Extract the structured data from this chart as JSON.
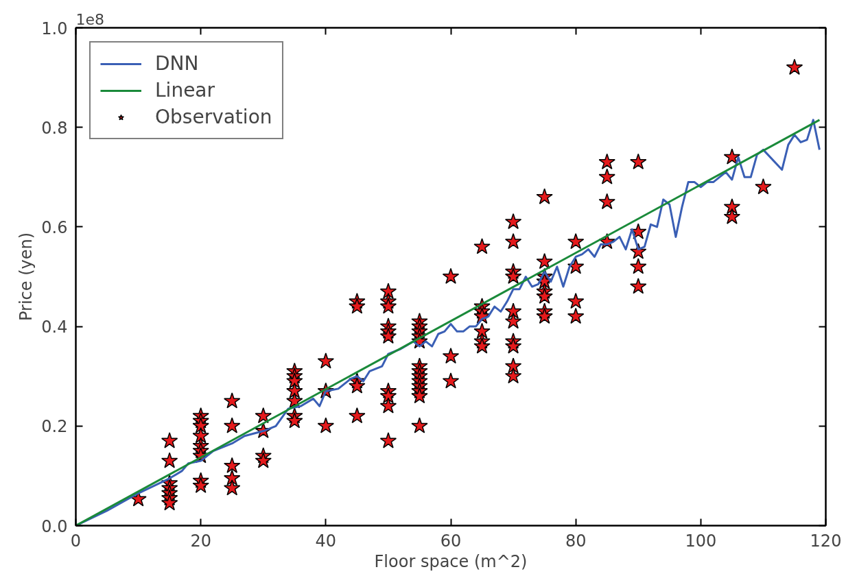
{
  "chart_data": {
    "type": "scatter",
    "xlabel": "Floor space (m^2)",
    "ylabel": "Price (yen)",
    "annotations": [
      "1e8"
    ],
    "xlim": [
      0,
      120
    ],
    "ylim": [
      0,
      1.0
    ],
    "xticks": [
      0,
      20,
      40,
      60,
      80,
      100,
      120
    ],
    "yticks": [
      {
        "value": 0,
        "label": "0.0"
      },
      {
        "value": 0.2,
        "label": "0.2"
      },
      {
        "value": 0.4,
        "label": "0.4"
      },
      {
        "value": 0.6,
        "label": "0.6"
      },
      {
        "value": 0.8,
        "label": "0.8"
      },
      {
        "value": 1.0,
        "label": "1.0"
      }
    ],
    "grid": false,
    "legend": "top left",
    "series": [
      {
        "name": "DNN",
        "type": "line",
        "color": "#3a5fb5",
        "line_style": "solid",
        "marker": "none",
        "x": [
          0,
          5,
          10,
          15,
          17,
          18,
          20,
          22,
          25,
          27,
          30,
          32,
          34,
          36,
          38,
          39,
          40,
          42,
          44,
          45,
          46,
          47,
          49,
          50,
          52,
          54,
          55,
          56,
          57,
          58,
          59,
          60,
          61,
          62,
          63,
          64,
          65,
          66,
          67,
          68,
          69,
          70,
          71,
          72,
          73,
          74,
          75,
          76,
          77,
          78,
          79,
          80,
          81,
          82,
          83,
          84,
          85,
          86,
          87,
          88,
          89,
          90,
          91,
          92,
          93,
          94,
          95,
          96,
          97,
          98,
          99,
          100,
          101,
          102,
          103,
          104,
          105,
          106,
          107,
          108,
          109,
          110,
          113,
          114,
          115,
          116,
          117,
          118,
          119
        ],
        "values": [
          0,
          0.03,
          0.065,
          0.095,
          0.11,
          0.125,
          0.13,
          0.15,
          0.165,
          0.18,
          0.19,
          0.2,
          0.235,
          0.24,
          0.255,
          0.24,
          0.27,
          0.275,
          0.295,
          0.3,
          0.29,
          0.31,
          0.32,
          0.345,
          0.355,
          0.37,
          0.36,
          0.37,
          0.36,
          0.385,
          0.39,
          0.405,
          0.39,
          0.39,
          0.4,
          0.4,
          0.415,
          0.42,
          0.44,
          0.43,
          0.45,
          0.475,
          0.475,
          0.5,
          0.48,
          0.485,
          0.51,
          0.49,
          0.52,
          0.48,
          0.52,
          0.54,
          0.545,
          0.555,
          0.54,
          0.565,
          0.565,
          0.57,
          0.58,
          0.555,
          0.595,
          0.555,
          0.56,
          0.605,
          0.6,
          0.655,
          0.645,
          0.58,
          0.64,
          0.69,
          0.69,
          0.68,
          0.69,
          0.69,
          0.7,
          0.71,
          0.695,
          0.74,
          0.7,
          0.7,
          0.745,
          0.755,
          0.715,
          0.765,
          0.785,
          0.77,
          0.775,
          0.815,
          0.755
        ]
      },
      {
        "name": "Linear",
        "type": "line",
        "color": "#1a8a3a",
        "line_style": "solid",
        "marker": "none",
        "x": [
          0,
          119
        ],
        "values": [
          0,
          0.815
        ]
      },
      {
        "name": "Observation",
        "color": "#e41a1c",
        "marker": "star",
        "x": [
          10,
          15,
          15,
          15,
          15,
          15,
          15,
          15,
          20,
          20,
          20,
          20,
          20,
          20,
          20,
          20,
          20,
          25,
          25,
          25,
          25,
          25,
          30,
          30,
          30,
          30,
          35,
          35,
          35,
          35,
          35,
          35,
          35,
          40,
          40,
          40,
          45,
          45,
          45,
          45,
          45,
          50,
          50,
          50,
          50,
          50,
          50,
          50,
          50,
          50,
          50,
          55,
          55,
          55,
          55,
          55,
          55,
          55,
          55,
          55,
          55,
          55,
          55,
          55,
          60,
          60,
          60,
          65,
          65,
          65,
          65,
          65,
          65,
          65,
          70,
          70,
          70,
          70,
          70,
          70,
          70,
          70,
          70,
          70,
          75,
          75,
          75,
          75,
          75,
          75,
          75,
          75,
          80,
          80,
          80,
          80,
          85,
          85,
          85,
          85,
          90,
          90,
          90,
          90,
          90,
          105,
          105,
          105,
          110,
          115
        ],
        "values": [
          0.053,
          0.17,
          0.13,
          0.085,
          0.075,
          0.065,
          0.055,
          0.045,
          0.22,
          0.21,
          0.2,
          0.18,
          0.16,
          0.15,
          0.14,
          0.09,
          0.08,
          0.25,
          0.2,
          0.12,
          0.095,
          0.075,
          0.22,
          0.19,
          0.14,
          0.13,
          0.31,
          0.3,
          0.29,
          0.27,
          0.25,
          0.22,
          0.21,
          0.33,
          0.27,
          0.2,
          0.45,
          0.44,
          0.29,
          0.28,
          0.22,
          0.47,
          0.45,
          0.44,
          0.4,
          0.39,
          0.38,
          0.27,
          0.26,
          0.24,
          0.17,
          0.41,
          0.4,
          0.39,
          0.38,
          0.37,
          0.32,
          0.31,
          0.3,
          0.29,
          0.28,
          0.27,
          0.26,
          0.2,
          0.5,
          0.34,
          0.29,
          0.56,
          0.44,
          0.43,
          0.42,
          0.39,
          0.37,
          0.36,
          0.61,
          0.57,
          0.51,
          0.5,
          0.43,
          0.41,
          0.37,
          0.36,
          0.32,
          0.3,
          0.66,
          0.53,
          0.5,
          0.49,
          0.47,
          0.46,
          0.43,
          0.42,
          0.57,
          0.52,
          0.45,
          0.42,
          0.73,
          0.7,
          0.65,
          0.57,
          0.73,
          0.59,
          0.55,
          0.52,
          0.48,
          0.74,
          0.64,
          0.62,
          0.68,
          0.92
        ]
      }
    ]
  }
}
